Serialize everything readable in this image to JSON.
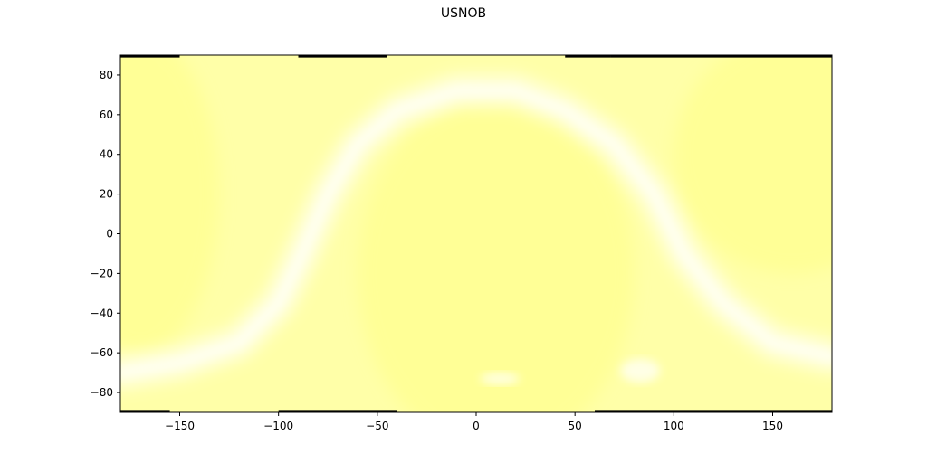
{
  "chart_data": {
    "type": "heatmap",
    "title": "USNOB",
    "xlabel": "",
    "ylabel": "",
    "xlim": [
      -180,
      180
    ],
    "ylim": [
      -90,
      90
    ],
    "xticks": [
      -150,
      -100,
      -50,
      0,
      50,
      100,
      150
    ],
    "xtick_labels": [
      "−150",
      "−100",
      "−50",
      "0",
      "50",
      "100",
      "150"
    ],
    "yticks": [
      80,
      60,
      40,
      20,
      0,
      -20,
      -40,
      -60,
      -80
    ],
    "ytick_labels": [
      "80",
      "60",
      "40",
      "20",
      "0",
      "−20",
      "−40",
      "−60",
      "−80"
    ],
    "grid": false,
    "colors": {
      "base": "#ffffa8",
      "dense": "#ffff88",
      "sparse": "#fffff0",
      "edge": "#000000"
    },
    "features": [
      {
        "kind": "galactic-plane",
        "shape": "S-curve",
        "description_x_range": [
          -180,
          180
        ]
      }
    ],
    "edge_bands": [
      {
        "lat": 89.5,
        "lon_ranges": [
          [
            -180,
            -150
          ],
          [
            -90,
            -45
          ],
          [
            45,
            68
          ],
          [
            68,
            180
          ]
        ]
      },
      {
        "lat": -89.5,
        "lon_ranges": [
          [
            -180,
            -155
          ],
          [
            -100,
            -40
          ],
          [
            60,
            90
          ],
          [
            90,
            180
          ]
        ]
      }
    ]
  }
}
